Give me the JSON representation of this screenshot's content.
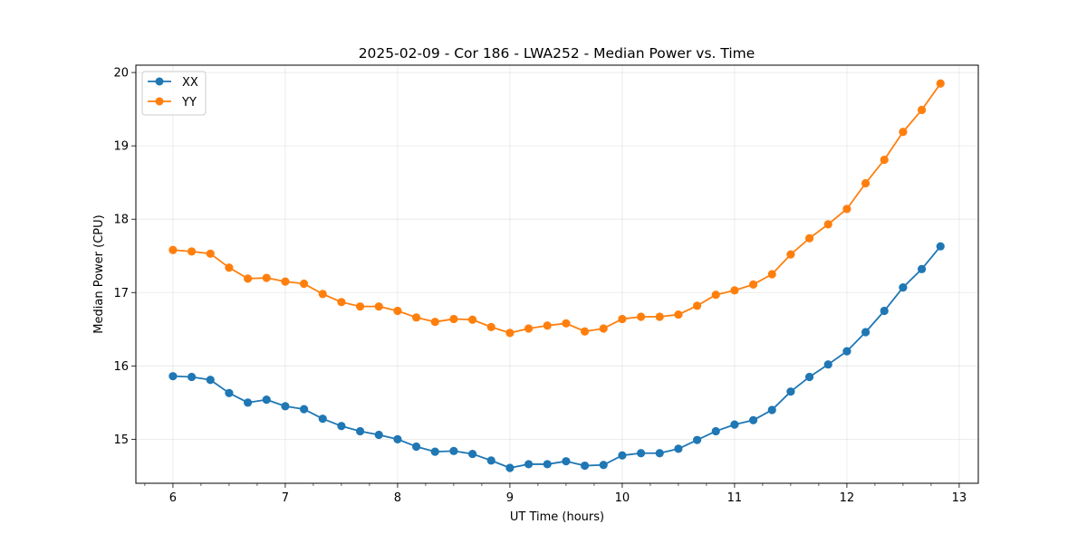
{
  "chart_data": {
    "type": "line",
    "title": "2025-02-09 - Cor 186 - LWA252 - Median Power vs. Time",
    "xlabel": "UT Time (hours)",
    "ylabel": "Median Power (CPU)",
    "xlim": [
      5.67,
      13.17
    ],
    "ylim": [
      14.4,
      20.1
    ],
    "xticks": [
      6,
      7,
      8,
      9,
      10,
      11,
      12,
      13
    ],
    "xtick_labels": [
      "6",
      "7",
      "8",
      "9",
      "10",
      "11",
      "12",
      "13"
    ],
    "yticks": [
      15,
      16,
      17,
      18,
      19,
      20
    ],
    "ytick_labels": [
      "15",
      "16",
      "17",
      "18",
      "19",
      "20"
    ],
    "grid": true,
    "legend": "top-left",
    "x": [
      6.0,
      6.1667,
      6.3333,
      6.5,
      6.6667,
      6.8333,
      7.0,
      7.1667,
      7.3333,
      7.5,
      7.6667,
      7.8333,
      8.0,
      8.1667,
      8.3333,
      8.5,
      8.6667,
      8.8333,
      9.0,
      9.1667,
      9.3333,
      9.5,
      9.6667,
      9.8333,
      10.0,
      10.1667,
      10.3333,
      10.5,
      10.6667,
      10.8333,
      11.0,
      11.1667,
      11.3333,
      11.5,
      11.6667,
      11.8333,
      12.0,
      12.1667,
      12.3333,
      12.5,
      12.6667,
      12.8333
    ],
    "series": [
      {
        "name": "XX",
        "color": "#1f77b4",
        "values": [
          15.86,
          15.85,
          15.81,
          15.63,
          15.5,
          15.54,
          15.45,
          15.41,
          15.28,
          15.18,
          15.11,
          15.06,
          15.0,
          14.9,
          14.83,
          14.84,
          14.8,
          14.71,
          14.61,
          14.66,
          14.66,
          14.7,
          14.64,
          14.65,
          14.78,
          14.81,
          14.81,
          14.87,
          14.99,
          15.11,
          15.2,
          15.26,
          15.4,
          15.65,
          15.85,
          16.02,
          16.2,
          16.46,
          16.75,
          17.07,
          17.32,
          17.63
        ]
      },
      {
        "name": "YY",
        "color": "#ff7f0e",
        "values": [
          17.58,
          17.56,
          17.53,
          17.34,
          17.19,
          17.2,
          17.15,
          17.12,
          16.98,
          16.87,
          16.81,
          16.81,
          16.75,
          16.66,
          16.6,
          16.64,
          16.63,
          16.53,
          16.45,
          16.51,
          16.55,
          16.58,
          16.47,
          16.51,
          16.64,
          16.67,
          16.67,
          16.7,
          16.82,
          16.97,
          17.03,
          17.11,
          17.25,
          17.52,
          17.74,
          17.93,
          18.14,
          18.49,
          18.81,
          19.19,
          19.49,
          19.85
        ]
      }
    ]
  }
}
